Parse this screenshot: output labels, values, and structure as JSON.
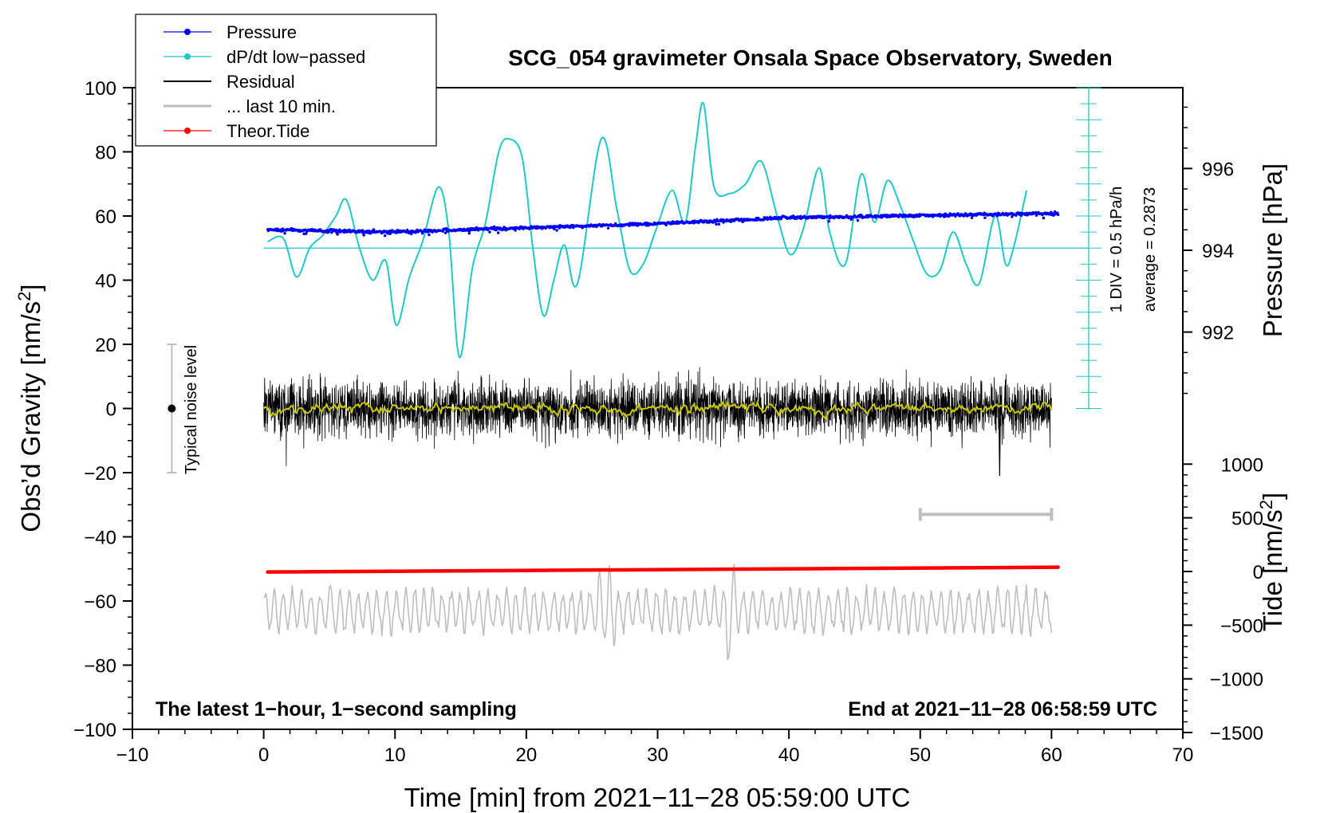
{
  "chart_data": {
    "type": "line",
    "title": "SCG_054 gravimeter Onsala Space Observatory, Sweden",
    "xlabel": "Time [min] from 2021−11−28 05:59:00 UTC",
    "ylabel_left": "Obs’d Gravity [nm/s",
    "ylabel_left_sup": "2",
    "ylabel_left_close": "]",
    "ylabel_right_pressure": "Pressure [hPa]",
    "ylabel_right_tide": "Tide [nm/s",
    "ylabel_right_tide_sup": "2",
    "ylabel_right_tide_close": "]",
    "xlim": [
      -10,
      70
    ],
    "ylim": [
      -100,
      100
    ],
    "x_ticks": [
      "−10",
      "0",
      "10",
      "20",
      "30",
      "40",
      "50",
      "60",
      "70"
    ],
    "y_ticks": [
      "100",
      "80",
      "60",
      "40",
      "20",
      "0",
      "−20",
      "−40",
      "−60",
      "−80",
      "−100"
    ],
    "pressure_ticks": [
      "996",
      "994",
      "992"
    ],
    "tide_ticks": [
      "1000",
      "500",
      "0",
      "−500",
      "−1000",
      "−1500"
    ],
    "annotations": {
      "bottom_left": "The latest 1−hour, 1−second sampling",
      "bottom_right": "End at 2021−11−28 06:58:59 UTC",
      "noise": "Typical noise level",
      "div_scale": "1 DIV = 0.5 hPa/h",
      "average": "average = 0.2873"
    },
    "legend": [
      {
        "label": "Pressure",
        "color": "#0000ff",
        "marker": true
      },
      {
        "label": "dP/dt low−passed",
        "color": "#20c8c8",
        "marker": true
      },
      {
        "label": "Residual",
        "color": "#000000",
        "marker": false
      },
      {
        "label": "... last 10 min.",
        "color": "#bebebe",
        "marker": false
      },
      {
        "label": "Theor.Tide",
        "color": "#ff0000",
        "marker": true
      }
    ],
    "series": {
      "pressure_hPa": {
        "x": [
          0.3,
          10,
          20,
          30,
          40,
          50,
          60.5
        ],
        "y": [
          994.5,
          994.45,
          994.55,
          994.65,
          994.8,
          994.85,
          994.9
        ]
      },
      "dpdt_plot_y": {
        "x": [
          0.3,
          1.5,
          2.5,
          3.5,
          4.5,
          5.5,
          6.3,
          7.3,
          8.3,
          9.3,
          10.1,
          11.1,
          12.1,
          13.3,
          14.1,
          14.9,
          15.9,
          16.9,
          17.9,
          18.7,
          19.7,
          20.5,
          21.3,
          22.1,
          22.9,
          23.9,
          25.7,
          26.9,
          27.9,
          28.9,
          29.9,
          31.1,
          32.1,
          32.9,
          33.5,
          34.3,
          35.5,
          36.7,
          37.9,
          39.1,
          40.1,
          41.1,
          42.3,
          43.1,
          44.3,
          45.5,
          46.5,
          47.5,
          48.5,
          49.5,
          50.5,
          51.5,
          52.5,
          53.5,
          54.5,
          55.7,
          56.5,
          57.1,
          58.1
        ],
        "y": [
          52,
          53,
          41,
          50,
          54,
          60,
          65,
          50,
          40,
          46,
          26,
          41,
          52,
          69,
          55,
          16,
          44,
          58,
          80,
          84,
          78,
          50,
          29,
          40,
          51,
          39,
          84,
          62,
          43,
          45,
          56,
          68,
          58,
          82,
          95,
          69,
          67,
          70,
          77,
          60,
          48,
          56,
          75,
          55,
          45,
          73,
          58,
          71,
          63,
          52,
          42,
          43,
          55,
          45,
          39,
          60,
          45,
          50,
          68
        ]
      },
      "pressure_reference_line": {
        "x": [
          0,
          62.8
        ],
        "y": [
          50,
          50
        ]
      },
      "residual": {
        "x_range": [
          0,
          60
        ],
        "center": 0,
        "amplitude_nm_s2": 8
      },
      "residual_last_10min_smoothed": {
        "x_range": [
          0,
          60
        ],
        "center": 0,
        "amplitude_nm_s2": 1.5
      },
      "theoretical_tide_nm_s2": {
        "x": [
          0.3,
          60.5
        ],
        "y": [
          -5,
          40
        ]
      },
      "residual_gray_copy": {
        "x_range": [
          0,
          60
        ],
        "center": -63,
        "amplitude_nm_s2": 7
      },
      "noise_level": {
        "x": -7,
        "center": 0,
        "range": [
          -20,
          20
        ]
      },
      "time_scale_bar": {
        "x": [
          50,
          60
        ],
        "y": -33
      }
    }
  },
  "colors": {
    "pressure": "#0000ff",
    "dpdt": "#20c8c8",
    "residual": "#000000",
    "last10": "#bebebe",
    "tide": "#ff0000",
    "smooth": "#c8c800"
  }
}
